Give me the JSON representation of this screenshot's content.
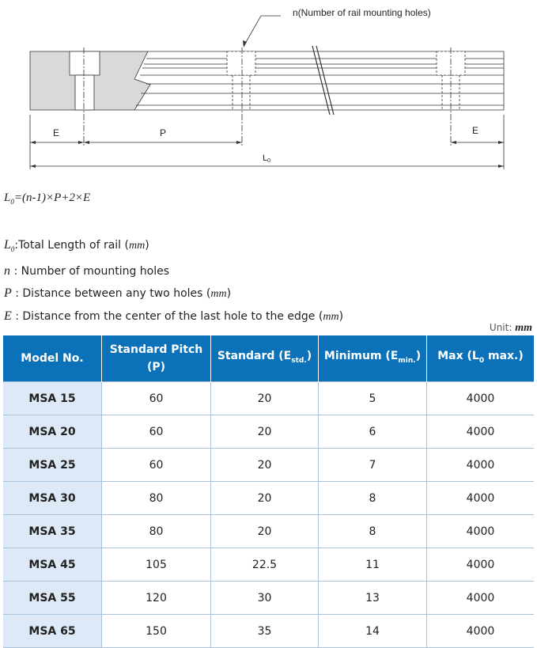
{
  "drawing": {
    "callout": "n(Number of rail mounting holes)",
    "dim_e_left": "E",
    "dim_p": "P",
    "dim_e_right": "E",
    "dim_l0": "L",
    "dim_l0_sub": "0"
  },
  "formula": {
    "lhs": "L",
    "lhs_sub": "0",
    "rhs": "=(n-1)×P+2×E"
  },
  "definitions": [
    {
      "symbol": "L",
      "sub": "0",
      "text": ":Total Length of rail (",
      "unit": "mm",
      "close": ")"
    },
    {
      "symbol": "n",
      "text": " : Number of mounting holes"
    },
    {
      "symbol": "P",
      "text": " : Distance between any two holes (",
      "unit": "mm",
      "close": ")"
    },
    {
      "symbol": "E",
      "text": " : Distance from the center of the last hole to the edge (",
      "unit": "mm",
      "close": ")"
    }
  ],
  "unit": {
    "label": "Unit: ",
    "value": "mm"
  },
  "table": {
    "headers": {
      "model": "Model No.",
      "pitch_1": "Standard Pitch",
      "pitch_2": "(P)",
      "std": "Standard (E",
      "std_sub": "std.",
      "min": "Minimum (E",
      "min_sub": "min.",
      "max": "Max (L",
      "max_sub": "0",
      "max_tail": " max.)"
    },
    "rows": [
      [
        "MSA 15",
        "60",
        "20",
        "5",
        "4000"
      ],
      [
        "MSA 20",
        "60",
        "20",
        "6",
        "4000"
      ],
      [
        "MSA 25",
        "60",
        "20",
        "7",
        "4000"
      ],
      [
        "MSA 30",
        "80",
        "20",
        "8",
        "4000"
      ],
      [
        "MSA 35",
        "80",
        "20",
        "8",
        "4000"
      ],
      [
        "MSA 45",
        "105",
        "22.5",
        "11",
        "4000"
      ],
      [
        "MSA 55",
        "120",
        "30",
        "13",
        "4000"
      ],
      [
        "MSA 65",
        "150",
        "35",
        "14",
        "4000"
      ]
    ]
  },
  "colors": {
    "header_bg": "#0b72b9",
    "model_col_bg": "#dde9f6"
  }
}
